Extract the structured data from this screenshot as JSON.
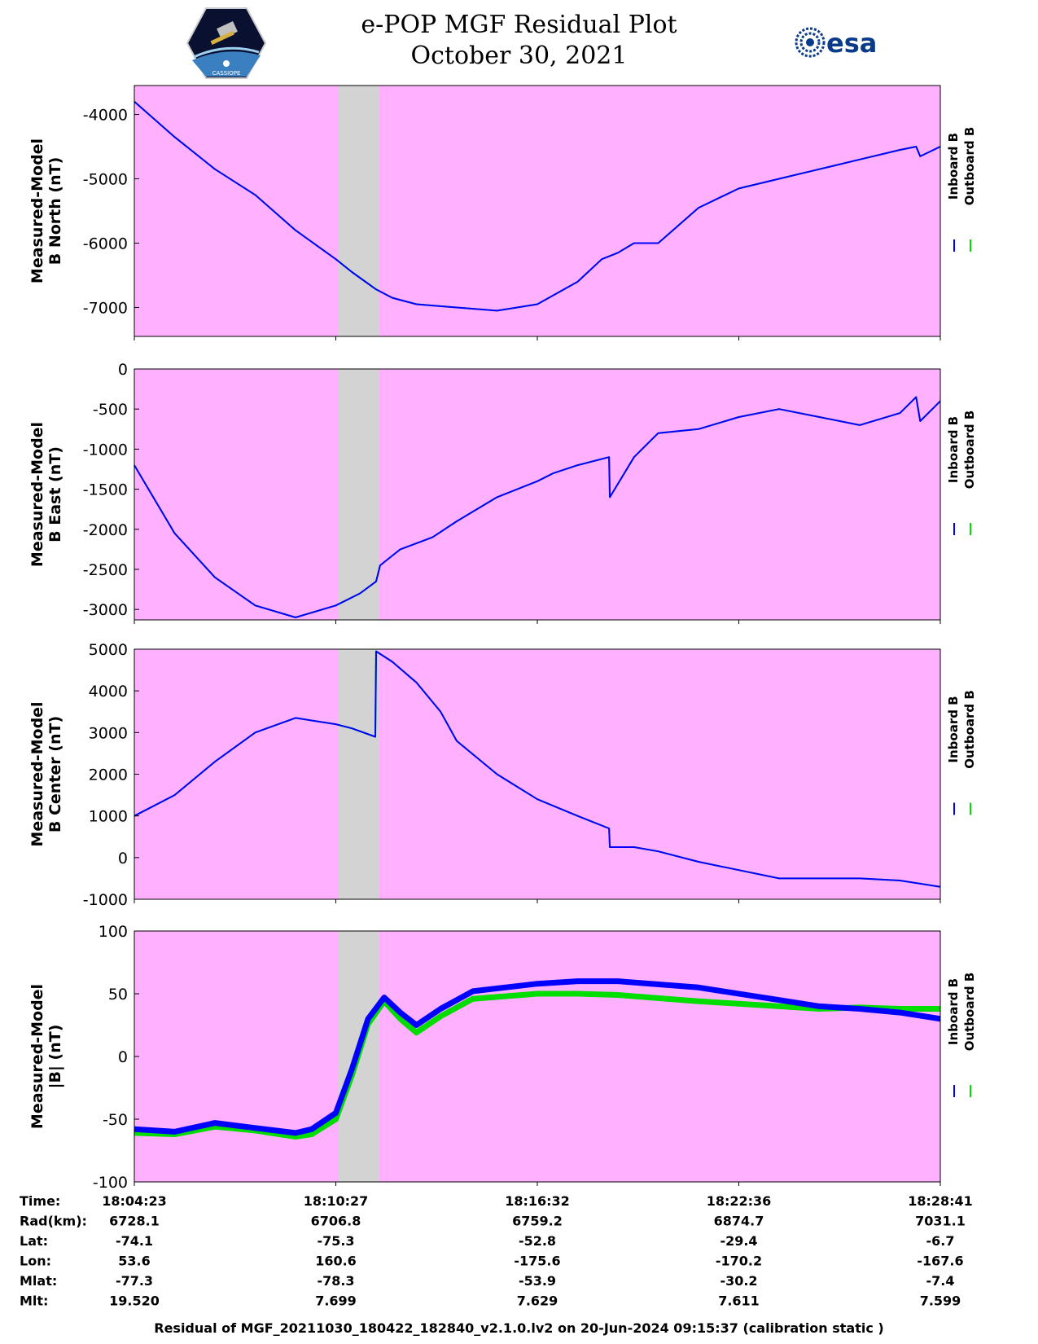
{
  "header": {
    "title": "e-POP MGF Residual Plot",
    "date": "October 30, 2021",
    "logo_left": "CASSIOPE",
    "logo_right": "esa"
  },
  "colors": {
    "background_plot": "#ffb0ff",
    "gap_band": "#d3d3d3",
    "inboard": "#0000ff",
    "outboard": "#00dd00"
  },
  "legend": {
    "inboard": "Inboard B",
    "outboard": "Outboard B"
  },
  "chart_data": [
    {
      "type": "line",
      "ylabel": [
        "Measured-Model",
        "B North (nT)"
      ],
      "ylim": [
        -7450,
        -3550
      ],
      "yticks": [
        -4000,
        -5000,
        -6000,
        -7000
      ],
      "xlim": [
        0,
        1.0
      ],
      "gap": [
        0.253,
        0.304
      ],
      "series": [
        {
          "name": "Inboard B",
          "x": [
            0,
            0.05,
            0.1,
            0.15,
            0.2,
            0.25,
            0.27,
            0.3,
            0.32,
            0.35,
            0.4,
            0.45,
            0.5,
            0.55,
            0.58,
            0.6,
            0.62,
            0.65,
            0.7,
            0.75,
            0.8,
            0.85,
            0.9,
            0.95,
            0.97,
            0.975,
            1.0
          ],
          "y": [
            -3800,
            -4350,
            -4850,
            -5250,
            -5800,
            -6250,
            -6450,
            -6720,
            -6850,
            -6950,
            -7000,
            -7050,
            -6950,
            -6600,
            -6250,
            -6150,
            -6000,
            -6000,
            -5450,
            -5150,
            -5000,
            -4850,
            -4700,
            -4550,
            -4500,
            -4650,
            -4500
          ]
        },
        {
          "name": "Outboard B",
          "x": [
            0,
            0.05,
            0.1,
            0.15,
            0.2,
            0.25,
            0.27,
            0.3,
            0.32,
            0.35,
            0.4,
            0.45,
            0.5,
            0.55,
            0.58,
            0.6,
            0.62,
            0.65,
            0.7,
            0.75,
            0.8,
            0.85,
            0.9,
            0.95,
            0.97,
            0.975,
            1.0
          ],
          "y": [
            -3800,
            -4350,
            -4850,
            -5250,
            -5800,
            -6250,
            -6450,
            -6720,
            -6850,
            -6950,
            -7000,
            -7050,
            -6950,
            -6600,
            -6250,
            -6150,
            -6000,
            -6000,
            -5450,
            -5150,
            -5000,
            -4850,
            -4700,
            -4550,
            -4500,
            -4650,
            -4500
          ]
        }
      ]
    },
    {
      "type": "line",
      "ylabel": [
        "Measured-Model",
        "B East (nT)"
      ],
      "ylim": [
        -3130,
        0
      ],
      "yticks": [
        0,
        -500,
        -1000,
        -1500,
        -2000,
        -2500,
        -3000
      ],
      "xlim": [
        0,
        1.0
      ],
      "gap": [
        0.253,
        0.304
      ],
      "series": [
        {
          "name": "Inboard B",
          "x": [
            0,
            0.05,
            0.1,
            0.15,
            0.2,
            0.25,
            0.28,
            0.3,
            0.305,
            0.33,
            0.37,
            0.4,
            0.45,
            0.5,
            0.52,
            0.55,
            0.589,
            0.59,
            0.62,
            0.65,
            0.7,
            0.75,
            0.8,
            0.85,
            0.9,
            0.95,
            0.97,
            0.975,
            1.0
          ],
          "y": [
            -1200,
            -2050,
            -2600,
            -2950,
            -3100,
            -2950,
            -2800,
            -2650,
            -2450,
            -2250,
            -2100,
            -1900,
            -1600,
            -1400,
            -1300,
            -1200,
            -1100,
            -1600,
            -1100,
            -800,
            -750,
            -600,
            -500,
            -600,
            -700,
            -550,
            -350,
            -650,
            -400
          ]
        },
        {
          "name": "Outboard B",
          "x": [
            0,
            0.05,
            0.1,
            0.15,
            0.2,
            0.25,
            0.28,
            0.3,
            0.305,
            0.33,
            0.37,
            0.4,
            0.45,
            0.5,
            0.52,
            0.55,
            0.589,
            0.59,
            0.62,
            0.65,
            0.7,
            0.75,
            0.8,
            0.85,
            0.9,
            0.95,
            0.97,
            0.975,
            1.0
          ],
          "y": [
            -1200,
            -2050,
            -2600,
            -2950,
            -3100,
            -2950,
            -2800,
            -2650,
            -2450,
            -2250,
            -2100,
            -1900,
            -1600,
            -1400,
            -1300,
            -1200,
            -1100,
            -1600,
            -1100,
            -800,
            -750,
            -600,
            -500,
            -600,
            -700,
            -550,
            -350,
            -650,
            -400
          ]
        }
      ]
    },
    {
      "type": "line",
      "ylabel": [
        "Measured-Model",
        "B Center (nT)"
      ],
      "ylim": [
        -1000,
        5000
      ],
      "yticks": [
        5000,
        4000,
        3000,
        2000,
        1000,
        0,
        -1000
      ],
      "xlim": [
        0,
        1.0
      ],
      "gap": [
        0.253,
        0.304
      ],
      "series": [
        {
          "name": "Inboard B",
          "x": [
            0,
            0.05,
            0.1,
            0.15,
            0.2,
            0.25,
            0.27,
            0.299,
            0.3,
            0.32,
            0.35,
            0.38,
            0.4,
            0.45,
            0.5,
            0.55,
            0.589,
            0.59,
            0.62,
            0.65,
            0.7,
            0.75,
            0.8,
            0.85,
            0.9,
            0.95,
            1.0
          ],
          "y": [
            1000,
            1500,
            2300,
            3000,
            3350,
            3200,
            3100,
            2900,
            4950,
            4700,
            4200,
            3500,
            2800,
            2000,
            1400,
            1000,
            700,
            250,
            250,
            150,
            -100,
            -300,
            -500,
            -500,
            -500,
            -550,
            -700
          ]
        },
        {
          "name": "Outboard B",
          "x": [
            0,
            0.05,
            0.1,
            0.15,
            0.2,
            0.25,
            0.27,
            0.299,
            0.3,
            0.32,
            0.35,
            0.38,
            0.4,
            0.45,
            0.5,
            0.55,
            0.589,
            0.59,
            0.62,
            0.65,
            0.7,
            0.75,
            0.8,
            0.85,
            0.9,
            0.95,
            1.0
          ],
          "y": [
            1000,
            1500,
            2300,
            3000,
            3350,
            3200,
            3100,
            2900,
            4950,
            4700,
            4200,
            3500,
            2800,
            2000,
            1400,
            1000,
            700,
            250,
            250,
            150,
            -100,
            -300,
            -500,
            -500,
            -500,
            -550,
            -700
          ]
        }
      ]
    },
    {
      "type": "line",
      "ylabel": [
        "Measured-Model",
        "|B| (nT)"
      ],
      "ylim": [
        -100,
        100
      ],
      "yticks": [
        100,
        50,
        0,
        -50,
        -100
      ],
      "xlim": [
        0,
        1.0
      ],
      "gap": [
        0.253,
        0.304
      ],
      "series": [
        {
          "name": "Inboard B",
          "x": [
            0,
            0.05,
            0.1,
            0.15,
            0.2,
            0.22,
            0.25,
            0.27,
            0.29,
            0.31,
            0.33,
            0.35,
            0.38,
            0.42,
            0.5,
            0.55,
            0.6,
            0.7,
            0.8,
            0.85,
            0.9,
            0.95,
            1.0
          ],
          "y": [
            -58,
            -60,
            -53,
            -57,
            -61,
            -58,
            -45,
            -10,
            30,
            47,
            35,
            25,
            38,
            52,
            58,
            60,
            60,
            55,
            45,
            40,
            38,
            35,
            30
          ]
        },
        {
          "name": "Outboard B",
          "x": [
            0,
            0.05,
            0.1,
            0.15,
            0.2,
            0.22,
            0.25,
            0.27,
            0.29,
            0.31,
            0.33,
            0.35,
            0.38,
            0.42,
            0.5,
            0.55,
            0.6,
            0.7,
            0.8,
            0.85,
            0.9,
            0.95,
            1.0
          ],
          "y": [
            -61,
            -62,
            -56,
            -59,
            -64,
            -62,
            -50,
            -15,
            26,
            44,
            30,
            19,
            32,
            46,
            50,
            50,
            49,
            44,
            40,
            38,
            39,
            38,
            38
          ]
        }
      ]
    }
  ],
  "orbit_table": {
    "labels": [
      "Time:",
      "Rad(km):",
      "Lat:",
      "Lon:",
      "Mlat:",
      "Mlt:"
    ],
    "columns": [
      [
        "18:04:23",
        "6728.1",
        "-74.1",
        "53.6",
        "-77.3",
        "19.520"
      ],
      [
        "18:10:27",
        "6706.8",
        "-75.3",
        "160.6",
        "-78.3",
        "7.699"
      ],
      [
        "18:16:32",
        "6759.2",
        "-52.8",
        "-175.6",
        "-53.9",
        "7.629"
      ],
      [
        "18:22:36",
        "6874.7",
        "-29.4",
        "-170.2",
        "-30.2",
        "7.611"
      ],
      [
        "18:28:41",
        "7031.1",
        "-6.7",
        "-167.6",
        "-7.4",
        "7.599"
      ]
    ]
  },
  "footer": "Residual of MGF_20211030_180422_182840_v2.1.0.lv2 on 20-Jun-2024 09:15:37 (calibration static )"
}
